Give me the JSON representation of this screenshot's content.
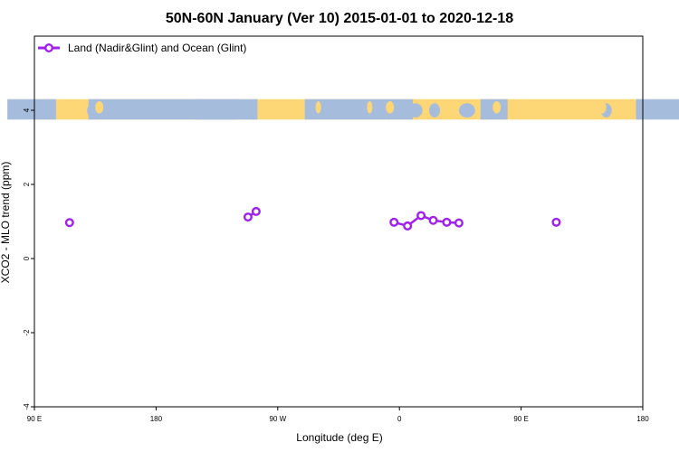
{
  "chart_data": {
    "type": "line",
    "title": "50N-60N January (Ver 10)   2015-01-01 to 2020-12-18",
    "xlabel": "Longitude (deg E)",
    "ylabel": "XCO2 - MLO trend (ppm)",
    "xlim": [
      90,
      540
    ],
    "ylim": [
      -4,
      6
    ],
    "x_ticks": [
      {
        "value": 90,
        "label": "90 E"
      },
      {
        "value": 180,
        "label": "180"
      },
      {
        "value": 270,
        "label": "90 W"
      },
      {
        "value": 360,
        "label": "0"
      },
      {
        "value": 450,
        "label": "90 E"
      },
      {
        "value": 540,
        "label": "180"
      }
    ],
    "y_ticks": [
      {
        "value": -4,
        "label": "-4"
      },
      {
        "value": -2,
        "label": "-2"
      },
      {
        "value": 0,
        "label": "0"
      },
      {
        "value": 2,
        "label": "2"
      },
      {
        "value": 4,
        "label": "4"
      }
    ],
    "map_strip": {
      "y_from": 3.75,
      "y_to": 4.3,
      "land_color": "#FDD675",
      "ocean_color": "#A6BCDC"
    },
    "series": [
      {
        "name": "Land (Nadir&Glint) and Ocean (Glint)",
        "color": "#A020F0",
        "segments": [
          [
            {
              "x": 116,
              "y": 0.97
            }
          ],
          [
            {
              "x": 248,
              "y": 1.12
            },
            {
              "x": 254,
              "y": 1.27
            }
          ],
          [
            {
              "x": 356,
              "y": 0.98
            },
            {
              "x": 366,
              "y": 0.88
            },
            {
              "x": 376,
              "y": 1.16
            },
            {
              "x": 385,
              "y": 1.03
            },
            {
              "x": 395,
              "y": 0.98
            },
            {
              "x": 404,
              "y": 0.96
            }
          ],
          [
            {
              "x": 476,
              "y": 0.98
            }
          ]
        ]
      }
    ],
    "legend": {
      "position": "top-left"
    }
  }
}
